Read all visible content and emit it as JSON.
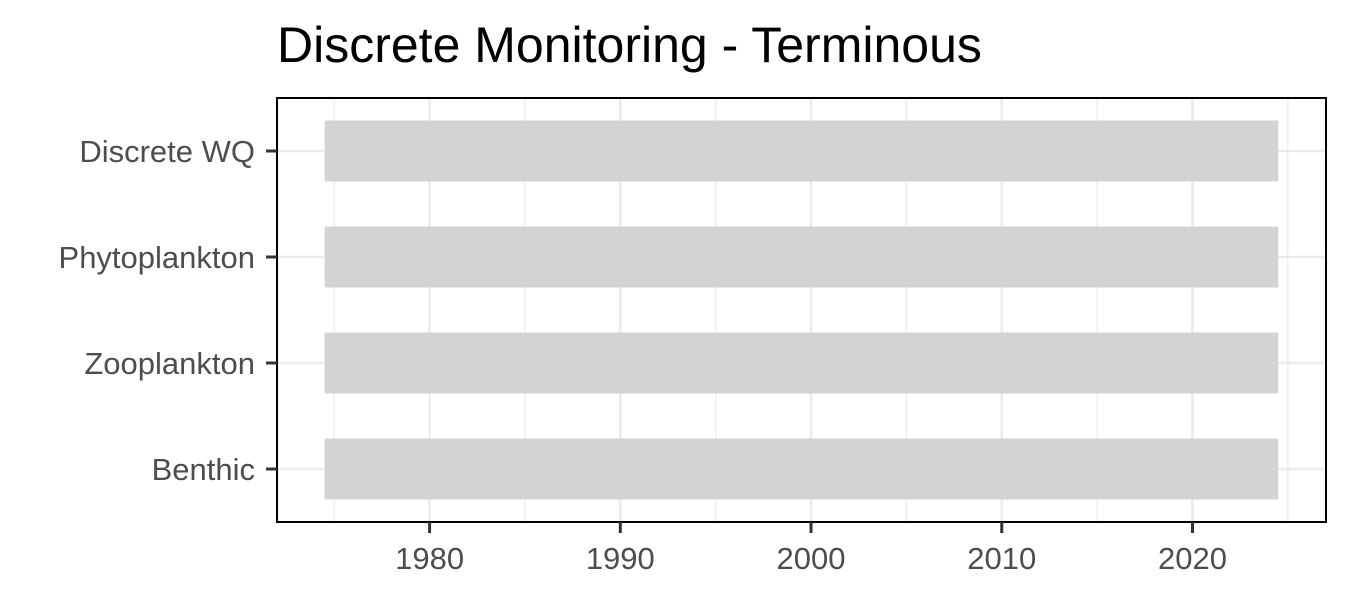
{
  "chart_data": {
    "type": "bar",
    "orientation": "horizontal",
    "title": "Discrete Monitoring - Terminous",
    "xlabel": "",
    "ylabel": "",
    "categories": [
      "Discrete WQ",
      "Phytoplankton",
      "Zooplankton",
      "Benthic"
    ],
    "series": [
      {
        "ranges": [
          [
            1974.5,
            2024.5
          ],
          [
            1974.5,
            2024.5
          ],
          [
            1974.5,
            2024.5
          ],
          [
            1974.5,
            2024.5
          ]
        ]
      }
    ],
    "xlim": [
      1972.0,
      1987.0
    ],
    "xlim_full": [
      1972.0,
      2027.0
    ],
    "xticks": [
      1980,
      1990,
      2000,
      2010,
      2020
    ],
    "xtick_labels": [
      "1980",
      "1990",
      "2000",
      "2010",
      "2020"
    ],
    "grid": true,
    "legend": "none",
    "colors": {
      "bar": "#d3d3d3",
      "grid": "#ebebeb",
      "panel_border": "#000000",
      "tick_text": "#4d4d4d",
      "title": "#000000"
    }
  }
}
